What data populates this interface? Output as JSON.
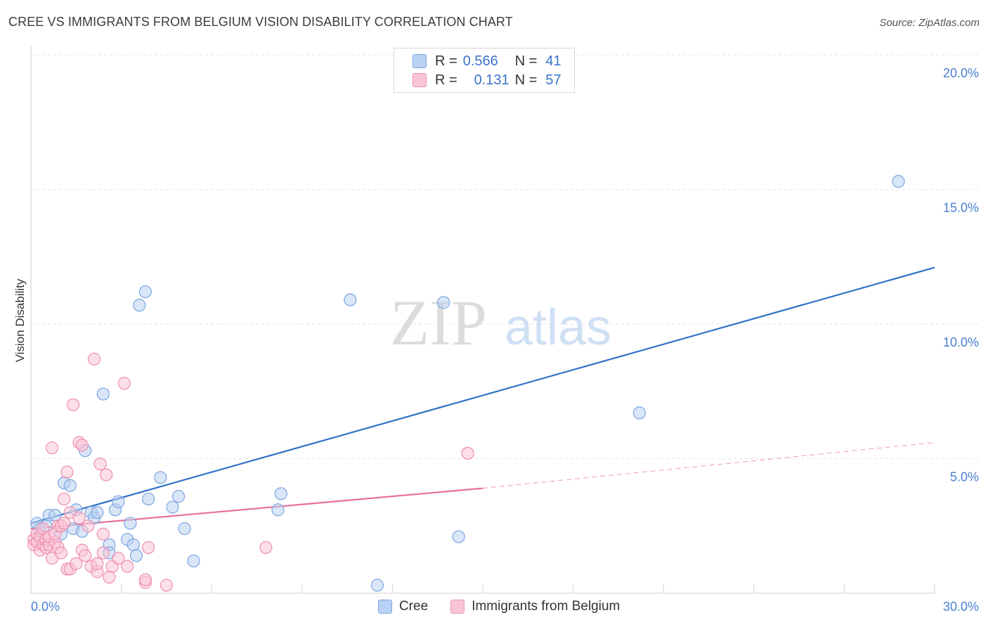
{
  "title": "CREE VS IMMIGRANTS FROM BELGIUM VISION DISABILITY CORRELATION CHART",
  "source": "Source: ZipAtlas.com",
  "watermark": {
    "zip": "ZIP",
    "atlas": "atlas"
  },
  "legend": {
    "r_label": "R =",
    "n_label": "N =",
    "rows": [
      {
        "r": "0.566",
        "n": "41",
        "fill": "#b9d2f3",
        "stroke": "#7aa5e0"
      },
      {
        "r": "0.131",
        "n": "57",
        "fill": "#f9c5d5",
        "stroke": "#ee8fae"
      }
    ]
  },
  "chart_data": {
    "type": "scatter",
    "title": "CREE VS IMMIGRANTS FROM BELGIUM VISION DISABILITY CORRELATION CHART",
    "xlabel": "",
    "ylabel": "Vision Disability",
    "xlim": [
      0,
      30
    ],
    "ylim": [
      0,
      20
    ],
    "x_ticks": [
      {
        "value": 0,
        "label": "0.0%"
      },
      {
        "value": 30,
        "label": "30.0%"
      }
    ],
    "y_ticks": [
      {
        "value": 5,
        "label": "5.0%"
      },
      {
        "value": 10,
        "label": "10.0%"
      },
      {
        "value": 15,
        "label": "15.0%"
      },
      {
        "value": 20,
        "label": "20.0%"
      }
    ],
    "series": [
      {
        "name": "Cree",
        "color": "#7aa5e0",
        "fill": "#b9d2f3",
        "line_color": "#2f72c9",
        "trend": {
          "x0": 0.0,
          "y0": 2.6,
          "x1": 30.0,
          "y1": 12.1
        },
        "points": [
          [
            0.2,
            2.6
          ],
          [
            0.3,
            2.4
          ],
          [
            0.5,
            2.5
          ],
          [
            0.6,
            2.9
          ],
          [
            0.8,
            2.9
          ],
          [
            1.0,
            2.2
          ],
          [
            1.1,
            4.1
          ],
          [
            1.3,
            4.0
          ],
          [
            1.4,
            2.4
          ],
          [
            1.5,
            3.1
          ],
          [
            1.7,
            2.3
          ],
          [
            1.8,
            5.3
          ],
          [
            2.0,
            3.0
          ],
          [
            2.1,
            2.8
          ],
          [
            2.2,
            3.0
          ],
          [
            2.4,
            7.4
          ],
          [
            2.6,
            1.8
          ],
          [
            2.6,
            1.5
          ],
          [
            2.8,
            3.1
          ],
          [
            2.9,
            3.4
          ],
          [
            3.2,
            2.0
          ],
          [
            3.3,
            2.6
          ],
          [
            3.4,
            1.8
          ],
          [
            3.5,
            1.4
          ],
          [
            3.6,
            10.7
          ],
          [
            3.8,
            11.2
          ],
          [
            3.9,
            3.5
          ],
          [
            4.3,
            4.3
          ],
          [
            4.7,
            3.2
          ],
          [
            4.9,
            3.6
          ],
          [
            5.1,
            2.4
          ],
          [
            5.4,
            1.2
          ],
          [
            8.2,
            3.1
          ],
          [
            8.3,
            3.7
          ],
          [
            10.6,
            10.9
          ],
          [
            11.5,
            0.3
          ],
          [
            13.7,
            10.8
          ],
          [
            14.2,
            2.1
          ],
          [
            20.2,
            6.7
          ],
          [
            28.8,
            15.3
          ]
        ]
      },
      {
        "name": "Immigrants from Belgium",
        "color": "#ee8fae",
        "fill": "#f9c5d5",
        "line_color": "#e8709a",
        "trend": {
          "x0": 0.0,
          "y0": 2.4,
          "x1": 15.0,
          "y1": 3.9
        },
        "trend_ext": {
          "x0": 15.0,
          "y0": 3.9,
          "x1": 30.0,
          "y1": 5.6
        },
        "points": [
          [
            0.1,
            2.0
          ],
          [
            0.1,
            1.8
          ],
          [
            0.2,
            2.2
          ],
          [
            0.2,
            1.9
          ],
          [
            0.3,
            1.6
          ],
          [
            0.3,
            2.1
          ],
          [
            0.4,
            1.8
          ],
          [
            0.4,
            2.4
          ],
          [
            0.5,
            1.7
          ],
          [
            0.5,
            2.0
          ],
          [
            0.6,
            1.8
          ],
          [
            0.6,
            2.1
          ],
          [
            0.7,
            1.3
          ],
          [
            0.7,
            5.4
          ],
          [
            0.8,
            1.9
          ],
          [
            0.8,
            2.2
          ],
          [
            0.9,
            1.7
          ],
          [
            0.9,
            2.5
          ],
          [
            1.0,
            1.5
          ],
          [
            1.0,
            2.5
          ],
          [
            1.1,
            2.6
          ],
          [
            1.1,
            3.5
          ],
          [
            1.2,
            0.9
          ],
          [
            1.2,
            4.5
          ],
          [
            1.3,
            0.9
          ],
          [
            1.3,
            3.0
          ],
          [
            1.4,
            7.0
          ],
          [
            1.5,
            1.1
          ],
          [
            1.6,
            2.8
          ],
          [
            1.6,
            5.6
          ],
          [
            1.7,
            1.6
          ],
          [
            1.7,
            5.5
          ],
          [
            1.8,
            1.4
          ],
          [
            1.9,
            2.5
          ],
          [
            2.0,
            1.0
          ],
          [
            2.1,
            8.7
          ],
          [
            2.2,
            0.8
          ],
          [
            2.2,
            1.1
          ],
          [
            2.3,
            4.8
          ],
          [
            2.4,
            1.5
          ],
          [
            2.4,
            2.2
          ],
          [
            2.5,
            4.4
          ],
          [
            2.6,
            0.6
          ],
          [
            2.7,
            1.0
          ],
          [
            2.9,
            1.3
          ],
          [
            3.1,
            7.8
          ],
          [
            3.2,
            1.0
          ],
          [
            3.8,
            0.4
          ],
          [
            3.8,
            0.5
          ],
          [
            3.9,
            1.7
          ],
          [
            4.5,
            0.3
          ],
          [
            7.8,
            1.7
          ],
          [
            14.5,
            5.2
          ]
        ]
      }
    ]
  }
}
